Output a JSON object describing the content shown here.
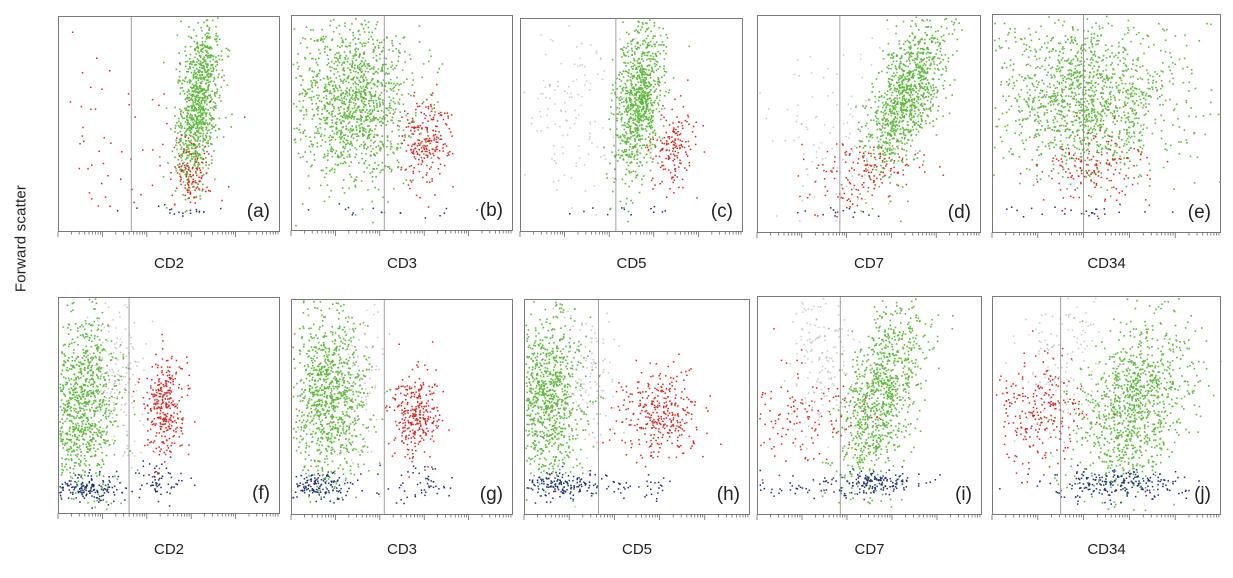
{
  "figure": {
    "ylabel": "Forward scatter"
  },
  "colors": {
    "green": "#5dbb3a",
    "red": "#e0231c",
    "blue": "#1f2f7a",
    "grey": "#9a9aa0",
    "frame": "#7a7a7a",
    "gate": "#8a8a8a"
  },
  "chart_data": [
    {
      "type": "scatter",
      "tag": "(a)",
      "xlabel": "CD2",
      "row": "top",
      "ylabel": "Forward scatter",
      "xscale": "log",
      "xlim": [
        0,
        1
      ],
      "ylim": [
        0,
        1
      ],
      "gate_x": 0.33,
      "clusters": [
        {
          "name": "",
          "color": "green",
          "cx": 0.63,
          "cy": 0.6,
          "sx": 0.05,
          "sy": 0.2,
          "n": 950,
          "rho": 0.45
        },
        {
          "name": "",
          "color": "red",
          "cx": 0.6,
          "cy": 0.27,
          "sx": 0.04,
          "sy": 0.07,
          "n": 110,
          "rho": 0.0
        },
        {
          "name": "",
          "color": "red",
          "cx": 0.3,
          "cy": 0.45,
          "sx": 0.22,
          "sy": 0.25,
          "n": 70,
          "rho": 0.0
        },
        {
          "name": "",
          "color": "blue",
          "cx": 0.55,
          "cy": 0.1,
          "sx": 0.15,
          "sy": 0.015,
          "n": 18,
          "rho": 0.0
        }
      ]
    },
    {
      "type": "scatter",
      "tag": "(b)",
      "xlabel": "CD3",
      "row": "top",
      "ylabel": "Forward scatter",
      "xscale": "log",
      "xlim": [
        0,
        1
      ],
      "ylim": [
        0,
        1
      ],
      "gate_x": 0.42,
      "clusters": [
        {
          "name": "",
          "color": "green",
          "cx": 0.27,
          "cy": 0.6,
          "sx": 0.14,
          "sy": 0.19,
          "n": 1300,
          "rho": 0.0
        },
        {
          "name": "",
          "color": "red",
          "cx": 0.6,
          "cy": 0.42,
          "sx": 0.055,
          "sy": 0.1,
          "n": 230,
          "rho": 0.1
        },
        {
          "name": "",
          "color": "blue",
          "cx": 0.45,
          "cy": 0.1,
          "sx": 0.18,
          "sy": 0.015,
          "n": 15,
          "rho": 0.0
        }
      ]
    },
    {
      "type": "scatter",
      "tag": "(c)",
      "xlabel": "CD5",
      "row": "top",
      "ylabel": "Forward scatter",
      "xscale": "log",
      "xlim": [
        0,
        1
      ],
      "ylim": [
        0,
        1
      ],
      "gate_x": 0.43,
      "clusters": [
        {
          "name": "",
          "color": "green",
          "cx": 0.53,
          "cy": 0.62,
          "sx": 0.055,
          "sy": 0.2,
          "n": 900,
          "rho": 0.4
        },
        {
          "name": "",
          "color": "red",
          "cx": 0.68,
          "cy": 0.4,
          "sx": 0.05,
          "sy": 0.09,
          "n": 160,
          "rho": 0.2
        },
        {
          "name": "",
          "color": "grey",
          "cx": 0.25,
          "cy": 0.6,
          "sx": 0.13,
          "sy": 0.22,
          "n": 140,
          "rho": 0.0
        },
        {
          "name": "",
          "color": "blue",
          "cx": 0.5,
          "cy": 0.1,
          "sx": 0.12,
          "sy": 0.015,
          "n": 12,
          "rho": 0.0
        }
      ]
    },
    {
      "type": "scatter",
      "tag": "(d)",
      "xlabel": "CD7",
      "row": "top",
      "ylabel": "Forward scatter",
      "xscale": "log",
      "xlim": [
        0,
        1
      ],
      "ylim": [
        0,
        1
      ],
      "gate_x": 0.37,
      "clusters": [
        {
          "name": "",
          "color": "green",
          "cx": 0.66,
          "cy": 0.62,
          "sx": 0.09,
          "sy": 0.18,
          "n": 1050,
          "rho": 0.6
        },
        {
          "name": "",
          "color": "red",
          "cx": 0.47,
          "cy": 0.27,
          "sx": 0.13,
          "sy": 0.08,
          "n": 150,
          "rho": 0.1
        },
        {
          "name": "",
          "color": "grey",
          "cx": 0.35,
          "cy": 0.45,
          "sx": 0.17,
          "sy": 0.2,
          "n": 120,
          "rho": 0.0
        },
        {
          "name": "",
          "color": "blue",
          "cx": 0.4,
          "cy": 0.1,
          "sx": 0.15,
          "sy": 0.015,
          "n": 15,
          "rho": 0.0
        }
      ]
    },
    {
      "type": "scatter",
      "tag": "(e)",
      "xlabel": "CD34",
      "row": "top",
      "ylabel": "Forward scatter",
      "xscale": "log",
      "xlim": [
        0,
        1
      ],
      "ylim": [
        0,
        1
      ],
      "gate_x": 0.4,
      "clusters": [
        {
          "name": "",
          "color": "green",
          "cx": 0.4,
          "cy": 0.62,
          "sx": 0.2,
          "sy": 0.18,
          "n": 1400,
          "rho": 0.0
        },
        {
          "name": "",
          "color": "red",
          "cx": 0.43,
          "cy": 0.3,
          "sx": 0.12,
          "sy": 0.08,
          "n": 150,
          "rho": 0.0
        },
        {
          "name": "",
          "color": "blue",
          "cx": 0.42,
          "cy": 0.1,
          "sx": 0.18,
          "sy": 0.015,
          "n": 25,
          "rho": 0.0
        }
      ]
    },
    {
      "type": "scatter",
      "tag": "(f)",
      "xlabel": "CD2",
      "row": "bottom",
      "ylabel": "Forward scatter",
      "xscale": "log",
      "xlim": [
        0,
        1
      ],
      "ylim": [
        0,
        1
      ],
      "gate_x": 0.32,
      "clusters": [
        {
          "name": "",
          "color": "green",
          "cx": 0.1,
          "cy": 0.52,
          "sx": 0.08,
          "sy": 0.21,
          "n": 950,
          "rho": 0.0
        },
        {
          "name": "",
          "color": "grey",
          "cx": 0.27,
          "cy": 0.62,
          "sx": 0.06,
          "sy": 0.2,
          "n": 180,
          "rho": 0.0
        },
        {
          "name": "",
          "color": "red",
          "cx": 0.48,
          "cy": 0.5,
          "sx": 0.045,
          "sy": 0.11,
          "n": 320,
          "rho": 0.0
        },
        {
          "name": "",
          "color": "blue",
          "cx": 0.14,
          "cy": 0.12,
          "sx": 0.08,
          "sy": 0.035,
          "n": 160,
          "rho": 0.0
        },
        {
          "name": "",
          "color": "blue",
          "cx": 0.45,
          "cy": 0.15,
          "sx": 0.07,
          "sy": 0.04,
          "n": 60,
          "rho": 0.0
        }
      ]
    },
    {
      "type": "scatter",
      "tag": "(g)",
      "xlabel": "CD3",
      "row": "bottom",
      "ylabel": "Forward scatter",
      "xscale": "log",
      "xlim": [
        0,
        1
      ],
      "ylim": [
        0,
        1
      ],
      "gate_x": 0.42,
      "clusters": [
        {
          "name": "",
          "color": "green",
          "cx": 0.17,
          "cy": 0.55,
          "sx": 0.08,
          "sy": 0.2,
          "n": 950,
          "rho": 0.0
        },
        {
          "name": "",
          "color": "grey",
          "cx": 0.3,
          "cy": 0.62,
          "sx": 0.06,
          "sy": 0.2,
          "n": 100,
          "rho": 0.0
        },
        {
          "name": "",
          "color": "red",
          "cx": 0.56,
          "cy": 0.47,
          "sx": 0.05,
          "sy": 0.1,
          "n": 300,
          "rho": 0.0
        },
        {
          "name": "",
          "color": "blue",
          "cx": 0.12,
          "cy": 0.14,
          "sx": 0.08,
          "sy": 0.035,
          "n": 140,
          "rho": 0.0
        },
        {
          "name": "",
          "color": "blue",
          "cx": 0.6,
          "cy": 0.15,
          "sx": 0.08,
          "sy": 0.04,
          "n": 50,
          "rho": 0.0
        }
      ]
    },
    {
      "type": "scatter",
      "tag": "(h)",
      "xlabel": "CD5",
      "row": "bottom",
      "ylabel": "Forward scatter",
      "xscale": "log",
      "xlim": [
        0,
        1
      ],
      "ylim": [
        0,
        1
      ],
      "gate_x": 0.33,
      "clusters": [
        {
          "name": "",
          "color": "green",
          "cx": 0.1,
          "cy": 0.55,
          "sx": 0.08,
          "sy": 0.2,
          "n": 900,
          "rho": 0.0
        },
        {
          "name": "",
          "color": "grey",
          "cx": 0.28,
          "cy": 0.62,
          "sx": 0.06,
          "sy": 0.2,
          "n": 120,
          "rho": 0.0
        },
        {
          "name": "",
          "color": "red",
          "cx": 0.6,
          "cy": 0.47,
          "sx": 0.09,
          "sy": 0.1,
          "n": 330,
          "rho": 0.0
        },
        {
          "name": "",
          "color": "blue",
          "cx": 0.14,
          "cy": 0.14,
          "sx": 0.09,
          "sy": 0.035,
          "n": 160,
          "rho": 0.0
        },
        {
          "name": "",
          "color": "blue",
          "cx": 0.48,
          "cy": 0.13,
          "sx": 0.1,
          "sy": 0.03,
          "n": 40,
          "rho": 0.0
        }
      ]
    },
    {
      "type": "scatter",
      "tag": "(i)",
      "xlabel": "CD7",
      "row": "bottom",
      "ylabel": "Forward scatter",
      "xscale": "log",
      "xlim": [
        0,
        1
      ],
      "ylim": [
        0,
        1
      ],
      "gate_x": 0.37,
      "clusters": [
        {
          "name": "",
          "color": "green",
          "cx": 0.55,
          "cy": 0.55,
          "sx": 0.09,
          "sy": 0.22,
          "n": 950,
          "rho": 0.5
        },
        {
          "name": "",
          "color": "grey",
          "cx": 0.28,
          "cy": 0.7,
          "sx": 0.07,
          "sy": 0.18,
          "n": 180,
          "rho": 0.0
        },
        {
          "name": "",
          "color": "red",
          "cx": 0.2,
          "cy": 0.45,
          "sx": 0.14,
          "sy": 0.12,
          "n": 140,
          "rho": 0.0
        },
        {
          "name": "",
          "color": "blue",
          "cx": 0.52,
          "cy": 0.15,
          "sx": 0.1,
          "sy": 0.03,
          "n": 160,
          "rho": 0.0
        },
        {
          "name": "",
          "color": "blue",
          "cx": 0.15,
          "cy": 0.12,
          "sx": 0.1,
          "sy": 0.025,
          "n": 30,
          "rho": 0.0
        }
      ]
    },
    {
      "type": "scatter",
      "tag": "(j)",
      "xlabel": "CD34",
      "row": "bottom",
      "ylabel": "Forward scatter",
      "xscale": "log",
      "xlim": [
        0,
        1
      ],
      "ylim": [
        0,
        1
      ],
      "gate_x": 0.3,
      "clusters": [
        {
          "name": "",
          "color": "green",
          "cx": 0.62,
          "cy": 0.5,
          "sx": 0.12,
          "sy": 0.19,
          "n": 1050,
          "rho": 0.3
        },
        {
          "name": "",
          "color": "grey",
          "cx": 0.3,
          "cy": 0.7,
          "sx": 0.1,
          "sy": 0.18,
          "n": 170,
          "rho": 0.0
        },
        {
          "name": "",
          "color": "red",
          "cx": 0.2,
          "cy": 0.47,
          "sx": 0.1,
          "sy": 0.12,
          "n": 240,
          "rho": 0.0
        },
        {
          "name": "",
          "color": "blue",
          "cx": 0.55,
          "cy": 0.14,
          "sx": 0.16,
          "sy": 0.035,
          "n": 220,
          "rho": 0.0
        }
      ]
    }
  ]
}
